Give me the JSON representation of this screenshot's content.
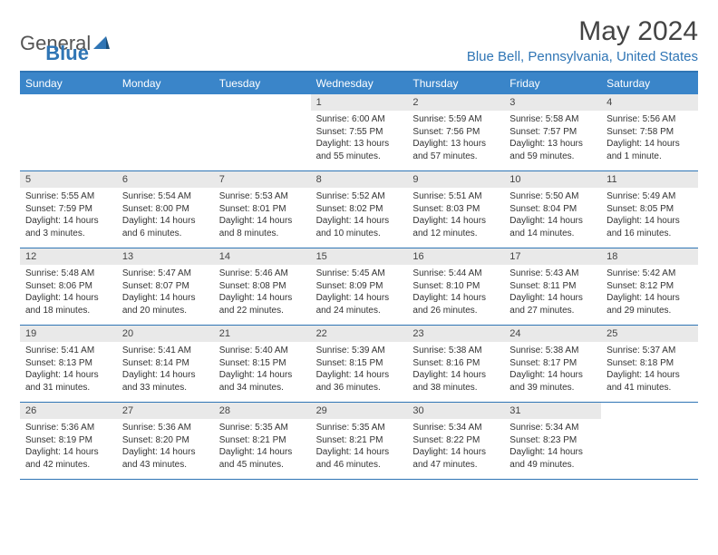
{
  "logo": {
    "text1": "General",
    "text2": "Blue"
  },
  "title": "May 2024",
  "location": "Blue Bell, Pennsylvania, United States",
  "colors": {
    "brand": "#2f75b5",
    "header_bg": "#3a85c9",
    "daynum_bg": "#e9e9e9",
    "text": "#333333"
  },
  "day_names": [
    "Sunday",
    "Monday",
    "Tuesday",
    "Wednesday",
    "Thursday",
    "Friday",
    "Saturday"
  ],
  "weeks": [
    [
      {
        "n": "",
        "sr": "",
        "ss": "",
        "dl": ""
      },
      {
        "n": "",
        "sr": "",
        "ss": "",
        "dl": ""
      },
      {
        "n": "",
        "sr": "",
        "ss": "",
        "dl": ""
      },
      {
        "n": "1",
        "sr": "Sunrise: 6:00 AM",
        "ss": "Sunset: 7:55 PM",
        "dl": "Daylight: 13 hours and 55 minutes."
      },
      {
        "n": "2",
        "sr": "Sunrise: 5:59 AM",
        "ss": "Sunset: 7:56 PM",
        "dl": "Daylight: 13 hours and 57 minutes."
      },
      {
        "n": "3",
        "sr": "Sunrise: 5:58 AM",
        "ss": "Sunset: 7:57 PM",
        "dl": "Daylight: 13 hours and 59 minutes."
      },
      {
        "n": "4",
        "sr": "Sunrise: 5:56 AM",
        "ss": "Sunset: 7:58 PM",
        "dl": "Daylight: 14 hours and 1 minute."
      }
    ],
    [
      {
        "n": "5",
        "sr": "Sunrise: 5:55 AM",
        "ss": "Sunset: 7:59 PM",
        "dl": "Daylight: 14 hours and 3 minutes."
      },
      {
        "n": "6",
        "sr": "Sunrise: 5:54 AM",
        "ss": "Sunset: 8:00 PM",
        "dl": "Daylight: 14 hours and 6 minutes."
      },
      {
        "n": "7",
        "sr": "Sunrise: 5:53 AM",
        "ss": "Sunset: 8:01 PM",
        "dl": "Daylight: 14 hours and 8 minutes."
      },
      {
        "n": "8",
        "sr": "Sunrise: 5:52 AM",
        "ss": "Sunset: 8:02 PM",
        "dl": "Daylight: 14 hours and 10 minutes."
      },
      {
        "n": "9",
        "sr": "Sunrise: 5:51 AM",
        "ss": "Sunset: 8:03 PM",
        "dl": "Daylight: 14 hours and 12 minutes."
      },
      {
        "n": "10",
        "sr": "Sunrise: 5:50 AM",
        "ss": "Sunset: 8:04 PM",
        "dl": "Daylight: 14 hours and 14 minutes."
      },
      {
        "n": "11",
        "sr": "Sunrise: 5:49 AM",
        "ss": "Sunset: 8:05 PM",
        "dl": "Daylight: 14 hours and 16 minutes."
      }
    ],
    [
      {
        "n": "12",
        "sr": "Sunrise: 5:48 AM",
        "ss": "Sunset: 8:06 PM",
        "dl": "Daylight: 14 hours and 18 minutes."
      },
      {
        "n": "13",
        "sr": "Sunrise: 5:47 AM",
        "ss": "Sunset: 8:07 PM",
        "dl": "Daylight: 14 hours and 20 minutes."
      },
      {
        "n": "14",
        "sr": "Sunrise: 5:46 AM",
        "ss": "Sunset: 8:08 PM",
        "dl": "Daylight: 14 hours and 22 minutes."
      },
      {
        "n": "15",
        "sr": "Sunrise: 5:45 AM",
        "ss": "Sunset: 8:09 PM",
        "dl": "Daylight: 14 hours and 24 minutes."
      },
      {
        "n": "16",
        "sr": "Sunrise: 5:44 AM",
        "ss": "Sunset: 8:10 PM",
        "dl": "Daylight: 14 hours and 26 minutes."
      },
      {
        "n": "17",
        "sr": "Sunrise: 5:43 AM",
        "ss": "Sunset: 8:11 PM",
        "dl": "Daylight: 14 hours and 27 minutes."
      },
      {
        "n": "18",
        "sr": "Sunrise: 5:42 AM",
        "ss": "Sunset: 8:12 PM",
        "dl": "Daylight: 14 hours and 29 minutes."
      }
    ],
    [
      {
        "n": "19",
        "sr": "Sunrise: 5:41 AM",
        "ss": "Sunset: 8:13 PM",
        "dl": "Daylight: 14 hours and 31 minutes."
      },
      {
        "n": "20",
        "sr": "Sunrise: 5:41 AM",
        "ss": "Sunset: 8:14 PM",
        "dl": "Daylight: 14 hours and 33 minutes."
      },
      {
        "n": "21",
        "sr": "Sunrise: 5:40 AM",
        "ss": "Sunset: 8:15 PM",
        "dl": "Daylight: 14 hours and 34 minutes."
      },
      {
        "n": "22",
        "sr": "Sunrise: 5:39 AM",
        "ss": "Sunset: 8:15 PM",
        "dl": "Daylight: 14 hours and 36 minutes."
      },
      {
        "n": "23",
        "sr": "Sunrise: 5:38 AM",
        "ss": "Sunset: 8:16 PM",
        "dl": "Daylight: 14 hours and 38 minutes."
      },
      {
        "n": "24",
        "sr": "Sunrise: 5:38 AM",
        "ss": "Sunset: 8:17 PM",
        "dl": "Daylight: 14 hours and 39 minutes."
      },
      {
        "n": "25",
        "sr": "Sunrise: 5:37 AM",
        "ss": "Sunset: 8:18 PM",
        "dl": "Daylight: 14 hours and 41 minutes."
      }
    ],
    [
      {
        "n": "26",
        "sr": "Sunrise: 5:36 AM",
        "ss": "Sunset: 8:19 PM",
        "dl": "Daylight: 14 hours and 42 minutes."
      },
      {
        "n": "27",
        "sr": "Sunrise: 5:36 AM",
        "ss": "Sunset: 8:20 PM",
        "dl": "Daylight: 14 hours and 43 minutes."
      },
      {
        "n": "28",
        "sr": "Sunrise: 5:35 AM",
        "ss": "Sunset: 8:21 PM",
        "dl": "Daylight: 14 hours and 45 minutes."
      },
      {
        "n": "29",
        "sr": "Sunrise: 5:35 AM",
        "ss": "Sunset: 8:21 PM",
        "dl": "Daylight: 14 hours and 46 minutes."
      },
      {
        "n": "30",
        "sr": "Sunrise: 5:34 AM",
        "ss": "Sunset: 8:22 PM",
        "dl": "Daylight: 14 hours and 47 minutes."
      },
      {
        "n": "31",
        "sr": "Sunrise: 5:34 AM",
        "ss": "Sunset: 8:23 PM",
        "dl": "Daylight: 14 hours and 49 minutes."
      },
      {
        "n": "",
        "sr": "",
        "ss": "",
        "dl": ""
      }
    ]
  ]
}
